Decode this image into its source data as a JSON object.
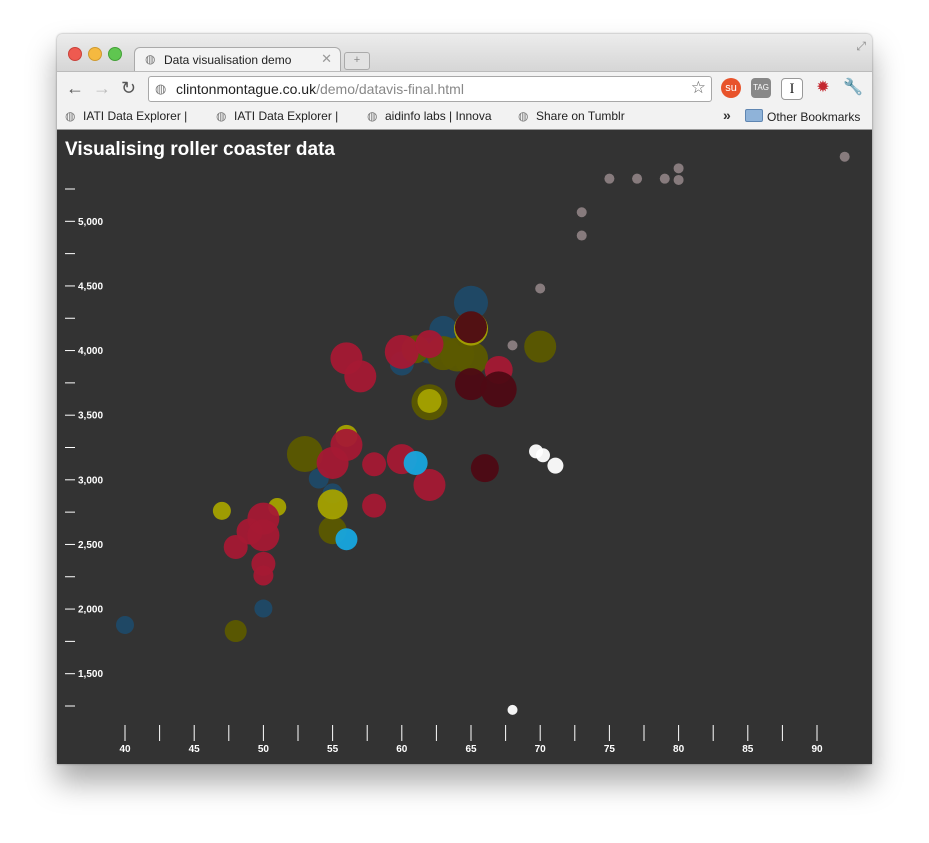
{
  "browser": {
    "tab_title": "Data visualisation demo",
    "url_host": "clintonmontague.co.uk",
    "url_path": "/demo/datavis-final.html",
    "bookmarks": [
      {
        "label": "IATI Data Explorer |"
      },
      {
        "label": "IATI Data Explorer |"
      },
      {
        "label": "aidinfo labs | Innova"
      },
      {
        "label": "Share on Tumblr"
      }
    ],
    "other_bookmarks": "Other Bookmarks",
    "more_chevron": "»"
  },
  "colors": {
    "background": "#333333",
    "crimson": "#a51934",
    "dark_maroon": "#4e0a14",
    "olive": "#5c5a00",
    "yellow_olive": "#a5a200",
    "navy": "#1f4a68",
    "cyan": "#17a7df",
    "mauve": "#8c7f82",
    "white": "#ffffff"
  },
  "chart_data": {
    "type": "scatter",
    "title": "Visualising roller coaster data",
    "xlabel": "",
    "ylabel": "",
    "xlim": [
      38,
      93
    ],
    "ylim": [
      1210,
      5460
    ],
    "x_ticks": [
      40,
      42.5,
      45,
      47.5,
      50,
      52.5,
      55,
      57.5,
      60,
      62.5,
      65,
      67.5,
      70,
      72.5,
      75,
      77.5,
      80,
      82.5,
      85,
      87.5,
      90
    ],
    "x_tick_labels": [
      "40",
      "45",
      "50",
      "55",
      "60",
      "65",
      "70",
      "75",
      "80",
      "85",
      "90"
    ],
    "y_ticks": [
      1250,
      1500,
      1750,
      2000,
      2250,
      2500,
      2750,
      3000,
      3250,
      3500,
      3750,
      4000,
      4250,
      4500,
      4750,
      5000,
      5250
    ],
    "y_tick_labels": [
      "1,500",
      "2,000",
      "2,500",
      "3,000",
      "3,500",
      "4,000",
      "4,500",
      "5,000"
    ],
    "series": [
      {
        "name": "navy",
        "color": "#1f4a68",
        "points": [
          {
            "x": 40,
            "y": 1877,
            "size": 9
          },
          {
            "x": 50,
            "y": 2004,
            "size": 9
          },
          {
            "x": 54,
            "y": 3010,
            "size": 10
          },
          {
            "x": 55,
            "y": 2895,
            "size": 10
          },
          {
            "x": 60,
            "y": 3900,
            "size": 12
          },
          {
            "x": 62,
            "y": 4000,
            "size": 13
          },
          {
            "x": 63,
            "y": 4160,
            "size": 14
          },
          {
            "x": 65,
            "y": 4370,
            "size": 17
          }
        ]
      },
      {
        "name": "olive",
        "color": "#5c5a00",
        "points": [
          {
            "x": 48,
            "y": 1830,
            "size": 11
          },
          {
            "x": 53,
            "y": 3200,
            "size": 18
          },
          {
            "x": 55,
            "y": 2610,
            "size": 14
          },
          {
            "x": 61,
            "y": 4010,
            "size": 14
          },
          {
            "x": 62,
            "y": 3600,
            "size": 18
          },
          {
            "x": 63,
            "y": 3980,
            "size": 17
          },
          {
            "x": 64,
            "y": 3970,
            "size": 17
          },
          {
            "x": 65,
            "y": 3940,
            "size": 17
          },
          {
            "x": 70,
            "y": 4030,
            "size": 16
          }
        ]
      },
      {
        "name": "yellow_olive",
        "color": "#a5a200",
        "points": [
          {
            "x": 47,
            "y": 2760,
            "size": 9
          },
          {
            "x": 51,
            "y": 2790,
            "size": 9
          },
          {
            "x": 55,
            "y": 2810,
            "size": 15
          },
          {
            "x": 56,
            "y": 3340,
            "size": 11
          },
          {
            "x": 62,
            "y": 3610,
            "size": 12
          },
          {
            "x": 65,
            "y": 4170,
            "size": 17
          }
        ]
      },
      {
        "name": "crimson",
        "color": "#a51934",
        "points": [
          {
            "x": 48,
            "y": 2480,
            "size": 12
          },
          {
            "x": 49,
            "y": 2600,
            "size": 13
          },
          {
            "x": 50,
            "y": 2700,
            "size": 16
          },
          {
            "x": 50,
            "y": 2570,
            "size": 16
          },
          {
            "x": 50,
            "y": 2350,
            "size": 12
          },
          {
            "x": 50,
            "y": 2260,
            "size": 10
          },
          {
            "x": 55,
            "y": 3130,
            "size": 16
          },
          {
            "x": 56,
            "y": 3270,
            "size": 16
          },
          {
            "x": 56,
            "y": 3940,
            "size": 16
          },
          {
            "x": 57,
            "y": 3800,
            "size": 16
          },
          {
            "x": 58,
            "y": 3120,
            "size": 12
          },
          {
            "x": 58,
            "y": 2800,
            "size": 12
          },
          {
            "x": 60,
            "y": 3990,
            "size": 17
          },
          {
            "x": 60,
            "y": 3160,
            "size": 15
          },
          {
            "x": 62,
            "y": 2960,
            "size": 16
          },
          {
            "x": 62,
            "y": 4050,
            "size": 14
          },
          {
            "x": 67,
            "y": 3850,
            "size": 14
          }
        ]
      },
      {
        "name": "dark_maroon",
        "color": "#4e0a14",
        "points": [
          {
            "x": 65,
            "y": 4180,
            "size": 16
          },
          {
            "x": 65,
            "y": 3740,
            "size": 16
          },
          {
            "x": 66,
            "y": 3090,
            "size": 14
          },
          {
            "x": 67,
            "y": 3700,
            "size": 18
          }
        ]
      },
      {
        "name": "cyan",
        "color": "#17a7df",
        "points": [
          {
            "x": 56,
            "y": 2540,
            "size": 11
          },
          {
            "x": 61,
            "y": 3130,
            "size": 12
          }
        ]
      },
      {
        "name": "mauve",
        "color": "#8c7f82",
        "points": [
          {
            "x": 68,
            "y": 4040,
            "size": 5
          },
          {
            "x": 70,
            "y": 4480,
            "size": 5
          },
          {
            "x": 73,
            "y": 4890,
            "size": 5
          },
          {
            "x": 73,
            "y": 5070,
            "size": 5
          },
          {
            "x": 75,
            "y": 5330,
            "size": 5
          },
          {
            "x": 77,
            "y": 5330,
            "size": 5
          },
          {
            "x": 79,
            "y": 5330,
            "size": 5
          },
          {
            "x": 80,
            "y": 5320,
            "size": 5
          },
          {
            "x": 80,
            "y": 5410,
            "size": 5
          },
          {
            "x": 92,
            "y": 5500,
            "size": 5
          }
        ]
      },
      {
        "name": "white",
        "color": "#ffffff",
        "points": [
          {
            "x": 68,
            "y": 1220,
            "size": 5
          },
          {
            "x": 69.7,
            "y": 3220,
            "size": 7
          },
          {
            "x": 70.2,
            "y": 3190,
            "size": 7
          },
          {
            "x": 71.1,
            "y": 3110,
            "size": 8
          }
        ]
      }
    ]
  }
}
